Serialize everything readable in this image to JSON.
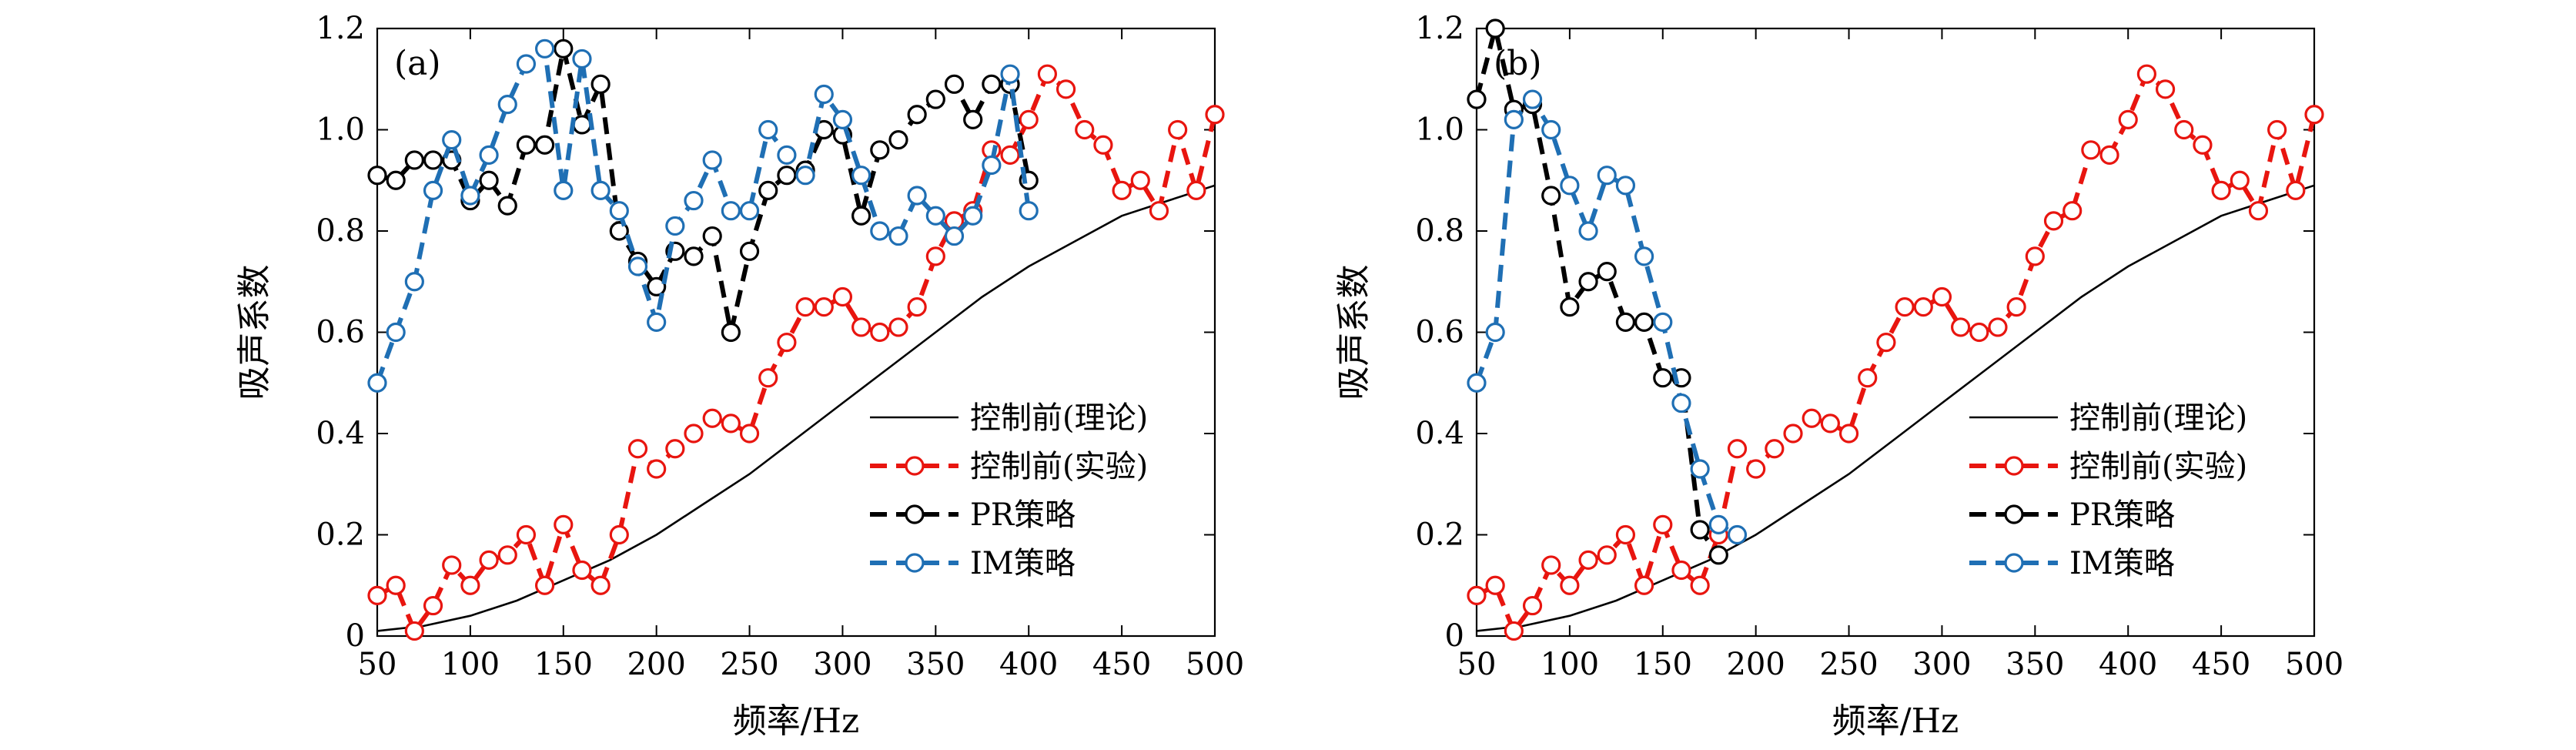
{
  "colors": {
    "theory": "#000000",
    "exp": "#e8150f",
    "pr": "#000000",
    "im": "#1f6fb4"
  },
  "axis": {
    "xlabel": "频率/Hz",
    "ylabel": "吸声系数"
  },
  "legend": {
    "theory": "控制前(理论)",
    "exp": "控制前(实验)",
    "pr": "PR策略",
    "im": "IM策略"
  },
  "chart_data": [
    {
      "type": "line",
      "panel_label": "(a)",
      "xlim": [
        50,
        500
      ],
      "ylim": [
        0,
        1.2
      ],
      "xticks": [
        50,
        100,
        150,
        200,
        250,
        300,
        350,
        400,
        450,
        500
      ],
      "yticks": [
        0,
        0.2,
        0.4,
        0.6,
        0.8,
        1.0,
        1.2
      ],
      "legend_position": "lower-right",
      "series": [
        {
          "key": "theory",
          "name": "控制前(理论)",
          "style": "solid",
          "x": [
            50,
            75,
            100,
            125,
            150,
            175,
            200,
            225,
            250,
            275,
            300,
            325,
            350,
            375,
            400,
            425,
            450,
            475,
            500
          ],
          "y": [
            0.01,
            0.02,
            0.04,
            0.07,
            0.11,
            0.15,
            0.2,
            0.26,
            0.32,
            0.39,
            0.46,
            0.53,
            0.6,
            0.67,
            0.73,
            0.78,
            0.83,
            0.86,
            0.89
          ]
        },
        {
          "key": "exp",
          "name": "控制前(实验)",
          "style": "dashed-markers",
          "x": [
            50,
            60,
            70,
            80,
            90,
            100,
            110,
            120,
            130,
            140,
            150,
            160,
            170,
            180,
            190,
            200,
            210,
            220,
            230,
            240,
            250,
            260,
            270,
            280,
            290,
            300,
            310,
            320,
            330,
            340,
            350,
            360,
            370,
            380,
            390,
            400,
            410,
            420,
            430,
            440,
            450,
            460,
            470,
            480,
            490,
            500
          ],
          "y": [
            0.08,
            0.1,
            0.01,
            0.06,
            0.14,
            0.1,
            0.15,
            0.16,
            0.2,
            0.1,
            0.22,
            0.13,
            0.1,
            0.2,
            0.37,
            0.33,
            0.37,
            0.4,
            0.43,
            0.42,
            0.4,
            0.51,
            0.58,
            0.65,
            0.65,
            0.67,
            0.61,
            0.6,
            0.61,
            0.65,
            0.75,
            0.82,
            0.84,
            0.96,
            0.95,
            1.02,
            1.11,
            1.08,
            1.0,
            0.97,
            0.88,
            0.9,
            0.84,
            1.0,
            0.88,
            1.03
          ]
        },
        {
          "key": "pr",
          "name": "PR策略",
          "style": "dashed-markers",
          "x": [
            50,
            60,
            70,
            80,
            90,
            100,
            110,
            120,
            130,
            140,
            150,
            160,
            170,
            180,
            190,
            200,
            210,
            220,
            230,
            240,
            250,
            260,
            270,
            280,
            290,
            300,
            310,
            320,
            330,
            340,
            350,
            360,
            370,
            380,
            390,
            400
          ],
          "y": [
            0.91,
            0.9,
            0.94,
            0.94,
            0.94,
            0.86,
            0.9,
            0.85,
            0.97,
            0.97,
            1.16,
            1.01,
            1.09,
            0.8,
            0.74,
            0.69,
            0.76,
            0.75,
            0.79,
            0.6,
            0.76,
            0.88,
            0.91,
            0.92,
            1.0,
            0.99,
            0.83,
            0.96,
            0.98,
            1.03,
            1.06,
            1.09,
            1.02,
            1.09,
            1.09,
            0.9
          ]
        },
        {
          "key": "im",
          "name": "IM策略",
          "style": "dashed-markers",
          "x": [
            50,
            60,
            70,
            80,
            90,
            100,
            110,
            120,
            130,
            140,
            150,
            160,
            170,
            180,
            190,
            200,
            210,
            220,
            230,
            240,
            250,
            260,
            270,
            280,
            290,
            300,
            310,
            320,
            330,
            340,
            350,
            360,
            370,
            380,
            390,
            400
          ],
          "y": [
            0.5,
            0.6,
            0.7,
            0.88,
            0.98,
            0.87,
            0.95,
            1.05,
            1.13,
            1.16,
            0.88,
            1.14,
            0.88,
            0.84,
            0.73,
            0.62,
            0.81,
            0.86,
            0.94,
            0.84,
            0.84,
            1.0,
            0.95,
            0.91,
            1.07,
            1.02,
            0.91,
            0.8,
            0.79,
            0.87,
            0.83,
            0.79,
            0.83,
            0.93,
            1.11,
            0.84
          ]
        }
      ]
    },
    {
      "type": "line",
      "panel_label": "(b)",
      "xlim": [
        50,
        500
      ],
      "ylim": [
        0,
        1.2
      ],
      "xticks": [
        50,
        100,
        150,
        200,
        250,
        300,
        350,
        400,
        450,
        500
      ],
      "yticks": [
        0,
        0.2,
        0.4,
        0.6,
        0.8,
        1.0,
        1.2
      ],
      "legend_position": "lower-right",
      "series": [
        {
          "key": "theory",
          "name": "控制前(理论)",
          "style": "solid",
          "x": [
            50,
            75,
            100,
            125,
            150,
            175,
            200,
            225,
            250,
            275,
            300,
            325,
            350,
            375,
            400,
            425,
            450,
            475,
            500
          ],
          "y": [
            0.01,
            0.02,
            0.04,
            0.07,
            0.11,
            0.15,
            0.2,
            0.26,
            0.32,
            0.39,
            0.46,
            0.53,
            0.6,
            0.67,
            0.73,
            0.78,
            0.83,
            0.86,
            0.89
          ]
        },
        {
          "key": "exp",
          "name": "控制前(实验)",
          "style": "dashed-markers",
          "x": [
            50,
            60,
            70,
            80,
            90,
            100,
            110,
            120,
            130,
            140,
            150,
            160,
            170,
            180,
            190,
            200,
            210,
            220,
            230,
            240,
            250,
            260,
            270,
            280,
            290,
            300,
            310,
            320,
            330,
            340,
            350,
            360,
            370,
            380,
            390,
            400,
            410,
            420,
            430,
            440,
            450,
            460,
            470,
            480,
            490,
            500
          ],
          "y": [
            0.08,
            0.1,
            0.01,
            0.06,
            0.14,
            0.1,
            0.15,
            0.16,
            0.2,
            0.1,
            0.22,
            0.13,
            0.1,
            0.2,
            0.37,
            0.33,
            0.37,
            0.4,
            0.43,
            0.42,
            0.4,
            0.51,
            0.58,
            0.65,
            0.65,
            0.67,
            0.61,
            0.6,
            0.61,
            0.65,
            0.75,
            0.82,
            0.84,
            0.96,
            0.95,
            1.02,
            1.11,
            1.08,
            1.0,
            0.97,
            0.88,
            0.9,
            0.84,
            1.0,
            0.88,
            1.03
          ]
        },
        {
          "key": "pr",
          "name": "PR策略",
          "style": "dashed-markers",
          "x": [
            50,
            60,
            70,
            80,
            90,
            100,
            110,
            120,
            130,
            140,
            150,
            160,
            170,
            180
          ],
          "y": [
            1.06,
            1.2,
            1.04,
            1.05,
            0.87,
            0.65,
            0.7,
            0.72,
            0.62,
            0.62,
            0.51,
            0.51,
            0.21,
            0.16
          ]
        },
        {
          "key": "im",
          "name": "IM策略",
          "style": "dashed-markers",
          "x": [
            50,
            60,
            70,
            80,
            90,
            100,
            110,
            120,
            130,
            140,
            150,
            160,
            170,
            180,
            190
          ],
          "y": [
            0.5,
            0.6,
            1.02,
            1.06,
            1.0,
            0.89,
            0.8,
            0.91,
            0.89,
            0.75,
            0.62,
            0.46,
            0.33,
            0.22,
            0.2
          ]
        }
      ]
    }
  ]
}
